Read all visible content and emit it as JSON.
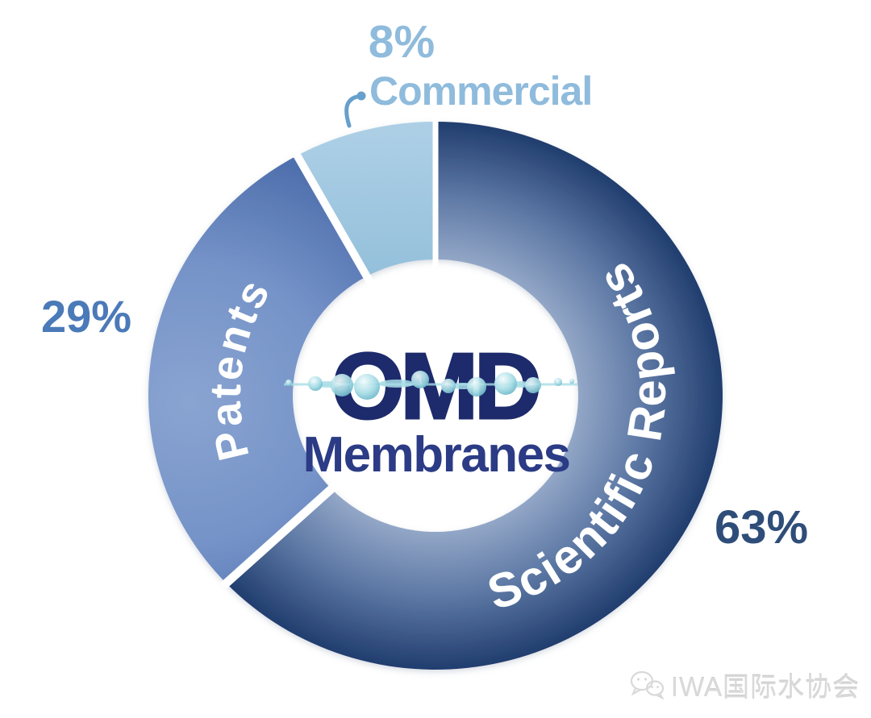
{
  "chart_data": {
    "type": "donut",
    "title": "",
    "direction": "clockwise",
    "start_angle_deg": 0,
    "legend_position": "labels-on-slices",
    "slices": [
      {
        "label": "Scientific Reports",
        "value": 63,
        "pct_label": "63%"
      },
      {
        "label": "Patents",
        "value": 29,
        "pct_label": "29%"
      },
      {
        "label": "Commercial",
        "value": 8,
        "pct_label": "8%"
      }
    ]
  },
  "center_label": {
    "title": "OMD",
    "subtitle": "Membranes"
  },
  "colors": {
    "sr_gradient": [
      "#98abca",
      "#5f7aa6",
      "#1f3c6d"
    ],
    "patents_gradient": [
      "#8aa4d1",
      "#7593c8",
      "#5070ae"
    ],
    "commercial_gradient": [
      "#accfe6",
      "#93bfda"
    ],
    "slice_label": "#ffffff",
    "pct_sr": "#2f4d79",
    "pct_patents": "#4b7ab8",
    "pct_commercial": "#8fbbdc",
    "leader": "#66a0cc",
    "logo_title": "#1d2b6c",
    "logo_subtitle": "#2b3b85",
    "bubbles": "#a8dde6",
    "bubble_edge": "#5fafc2",
    "bubble_highlight": "#f2fbfc",
    "divider": "#ffffff",
    "watermark": "#d9d9d9"
  },
  "watermark": {
    "text": "IWA国际水协会",
    "icon": "wechat-icon"
  }
}
